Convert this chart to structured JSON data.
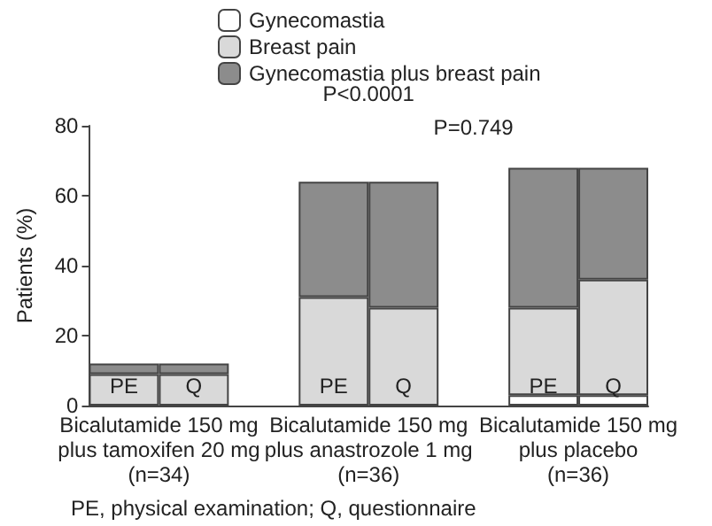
{
  "chart_data": {
    "type": "bar",
    "stacked": true,
    "ylabel": "Patients (%)",
    "categories": [
      "PE",
      "Q",
      null,
      "PE",
      "Q",
      null,
      "PE",
      "Q"
    ],
    "series": [
      {
        "name": "Gynecomastia",
        "color": "#ffffff",
        "values": [
          null,
          null,
          null,
          null,
          null,
          null,
          3,
          3
        ]
      },
      {
        "name": "Breast pain",
        "color": "#d9d9d9",
        "values": [
          9,
          9,
          null,
          31,
          28,
          null,
          25,
          33
        ]
      },
      {
        "name": "Gynecomastia plus breast pain",
        "color": "#8c8c8c",
        "values": [
          3,
          3,
          null,
          33,
          36,
          null,
          40,
          32
        ]
      }
    ],
    "ylim": [
      0,
      80
    ],
    "yticks": [
      0,
      20,
      40,
      60,
      80
    ],
    "grid": false,
    "legend": "top",
    "annotations": [
      "Bicalutamide 150 mg\nplus tamoxifen 20 mg\n(n=34)",
      "Bicalutamide 150 mg\nplus anastrozole 1 mg\n(n=36)",
      "Bicalutamide 150 mg\nplus placebo\n(n=36)",
      "P<0.0001",
      "P=0.749",
      "PE, physical examination; Q, questionnaire"
    ]
  }
}
